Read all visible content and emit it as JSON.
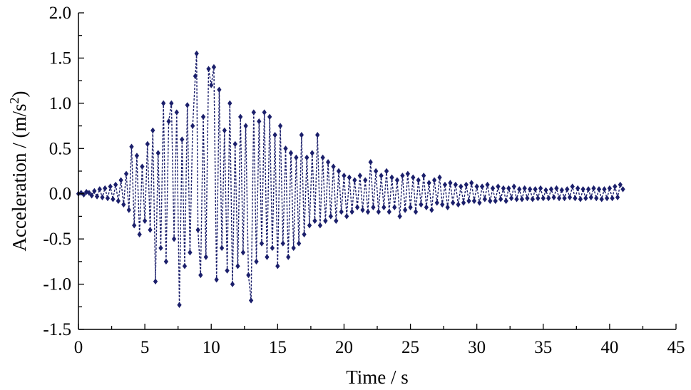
{
  "chart_data": {
    "type": "line",
    "xlabel": "Time / s",
    "ylabel": {
      "text": "Acceleration / (m/s",
      "superscript": "2",
      "suffix": ")"
    },
    "xlim": [
      0,
      45
    ],
    "ylim": [
      -1.5,
      2.0
    ],
    "x_ticks": [
      "0",
      "5",
      "10",
      "15",
      "20",
      "25",
      "30",
      "35",
      "40",
      "45"
    ],
    "y_ticks": [
      "-1.5",
      "-1.0",
      "-0.5",
      "0.0",
      "0.5",
      "1.0",
      "1.5",
      "2.0"
    ],
    "grid": false,
    "legend": "none",
    "line_style": "dashed",
    "marker": "diamond",
    "series": [
      {
        "color": "#1b1f6b",
        "points": [
          [
            0.0,
            0.0
          ],
          [
            0.2,
            0.01
          ],
          [
            0.4,
            -0.01
          ],
          [
            0.6,
            0.02
          ],
          [
            0.8,
            0.01
          ],
          [
            1.0,
            -0.02
          ],
          [
            1.2,
            0.03
          ],
          [
            1.4,
            -0.03
          ],
          [
            1.6,
            0.05
          ],
          [
            1.8,
            -0.04
          ],
          [
            2.0,
            0.06
          ],
          [
            2.2,
            -0.05
          ],
          [
            2.4,
            0.08
          ],
          [
            2.6,
            -0.06
          ],
          [
            2.8,
            0.1
          ],
          [
            3.0,
            -0.08
          ],
          [
            3.2,
            0.15
          ],
          [
            3.4,
            -0.12
          ],
          [
            3.6,
            0.22
          ],
          [
            3.8,
            -0.18
          ],
          [
            4.0,
            0.52
          ],
          [
            4.2,
            -0.35
          ],
          [
            4.4,
            0.42
          ],
          [
            4.6,
            -0.45
          ],
          [
            4.8,
            0.3
          ],
          [
            5.0,
            -0.3
          ],
          [
            5.2,
            0.55
          ],
          [
            5.4,
            -0.4
          ],
          [
            5.6,
            0.7
          ],
          [
            5.8,
            -0.97
          ],
          [
            6.0,
            0.45
          ],
          [
            6.2,
            -0.6
          ],
          [
            6.4,
            1.0
          ],
          [
            6.6,
            -0.75
          ],
          [
            6.8,
            0.8
          ],
          [
            7.0,
            1.0
          ],
          [
            7.2,
            -0.5
          ],
          [
            7.4,
            0.9
          ],
          [
            7.6,
            -1.23
          ],
          [
            7.8,
            0.6
          ],
          [
            8.0,
            -0.8
          ],
          [
            8.2,
            0.98
          ],
          [
            8.4,
            -0.65
          ],
          [
            8.6,
            0.75
          ],
          [
            8.8,
            1.3
          ],
          [
            8.9,
            1.55
          ],
          [
            9.0,
            -0.4
          ],
          [
            9.2,
            -0.9
          ],
          [
            9.4,
            0.85
          ],
          [
            9.6,
            -0.7
          ],
          [
            9.8,
            1.38
          ],
          [
            10.0,
            1.2
          ],
          [
            10.2,
            1.4
          ],
          [
            10.4,
            -0.95
          ],
          [
            10.6,
            1.15
          ],
          [
            10.8,
            -0.6
          ],
          [
            11.0,
            0.7
          ],
          [
            11.2,
            -0.85
          ],
          [
            11.4,
            1.0
          ],
          [
            11.6,
            -1.0
          ],
          [
            11.8,
            0.55
          ],
          [
            12.0,
            -0.8
          ],
          [
            12.2,
            0.85
          ],
          [
            12.4,
            -0.65
          ],
          [
            12.6,
            0.75
          ],
          [
            12.8,
            -0.9
          ],
          [
            13.0,
            -1.18
          ],
          [
            13.2,
            0.9
          ],
          [
            13.4,
            -0.75
          ],
          [
            13.6,
            0.8
          ],
          [
            13.8,
            -0.55
          ],
          [
            14.0,
            0.9
          ],
          [
            14.2,
            -0.7
          ],
          [
            14.4,
            0.85
          ],
          [
            14.6,
            -0.6
          ],
          [
            14.8,
            0.65
          ],
          [
            15.0,
            -0.8
          ],
          [
            15.2,
            0.75
          ],
          [
            15.4,
            -0.55
          ],
          [
            15.6,
            0.5
          ],
          [
            15.8,
            -0.7
          ],
          [
            16.0,
            0.45
          ],
          [
            16.2,
            -0.6
          ],
          [
            16.4,
            0.4
          ],
          [
            16.6,
            -0.55
          ],
          [
            16.8,
            0.65
          ],
          [
            17.0,
            -0.45
          ],
          [
            17.2,
            0.4
          ],
          [
            17.4,
            -0.35
          ],
          [
            17.6,
            0.45
          ],
          [
            17.8,
            -0.3
          ],
          [
            18.0,
            0.65
          ],
          [
            18.2,
            -0.35
          ],
          [
            18.4,
            0.4
          ],
          [
            18.6,
            -0.3
          ],
          [
            18.8,
            0.35
          ],
          [
            19.0,
            -0.25
          ],
          [
            19.2,
            0.3
          ],
          [
            19.4,
            -0.3
          ],
          [
            19.6,
            0.25
          ],
          [
            19.8,
            -0.2
          ],
          [
            20.0,
            0.2
          ],
          [
            20.2,
            -0.25
          ],
          [
            20.4,
            0.18
          ],
          [
            20.6,
            -0.2
          ],
          [
            20.8,
            0.15
          ],
          [
            21.0,
            -0.15
          ],
          [
            21.2,
            0.2
          ],
          [
            21.4,
            -0.18
          ],
          [
            21.6,
            0.15
          ],
          [
            21.8,
            -0.2
          ],
          [
            22.0,
            0.35
          ],
          [
            22.2,
            -0.15
          ],
          [
            22.4,
            0.25
          ],
          [
            22.6,
            -0.2
          ],
          [
            22.8,
            0.2
          ],
          [
            23.0,
            -0.15
          ],
          [
            23.2,
            0.25
          ],
          [
            23.4,
            -0.2
          ],
          [
            23.6,
            0.18
          ],
          [
            23.8,
            -0.15
          ],
          [
            24.0,
            0.15
          ],
          [
            24.2,
            -0.25
          ],
          [
            24.4,
            0.2
          ],
          [
            24.6,
            -0.18
          ],
          [
            24.8,
            0.22
          ],
          [
            25.0,
            -0.15
          ],
          [
            25.2,
            0.18
          ],
          [
            25.4,
            -0.2
          ],
          [
            25.6,
            0.15
          ],
          [
            25.8,
            -0.12
          ],
          [
            26.0,
            0.2
          ],
          [
            26.2,
            -0.15
          ],
          [
            26.4,
            0.12
          ],
          [
            26.6,
            -0.18
          ],
          [
            26.8,
            0.15
          ],
          [
            27.0,
            -0.1
          ],
          [
            27.2,
            0.18
          ],
          [
            27.4,
            -0.12
          ],
          [
            27.6,
            0.1
          ],
          [
            27.8,
            -0.15
          ],
          [
            28.0,
            0.12
          ],
          [
            28.2,
            -0.1
          ],
          [
            28.4,
            0.1
          ],
          [
            28.6,
            -0.12
          ],
          [
            28.8,
            0.08
          ],
          [
            29.0,
            -0.1
          ],
          [
            29.2,
            0.1
          ],
          [
            29.4,
            -0.08
          ],
          [
            29.6,
            0.12
          ],
          [
            29.8,
            -0.08
          ],
          [
            30.0,
            0.08
          ],
          [
            30.2,
            -0.1
          ],
          [
            30.4,
            0.08
          ],
          [
            30.6,
            -0.06
          ],
          [
            30.8,
            0.1
          ],
          [
            31.0,
            -0.08
          ],
          [
            31.2,
            0.06
          ],
          [
            31.4,
            -0.08
          ],
          [
            31.6,
            0.08
          ],
          [
            31.8,
            -0.06
          ],
          [
            32.0,
            0.06
          ],
          [
            32.2,
            -0.08
          ],
          [
            32.4,
            0.06
          ],
          [
            32.6,
            -0.05
          ],
          [
            32.8,
            0.08
          ],
          [
            33.0,
            -0.06
          ],
          [
            33.2,
            0.05
          ],
          [
            33.4,
            -0.06
          ],
          [
            33.6,
            0.06
          ],
          [
            33.8,
            -0.05
          ],
          [
            34.0,
            0.05
          ],
          [
            34.2,
            -0.06
          ],
          [
            34.4,
            0.05
          ],
          [
            34.6,
            -0.05
          ],
          [
            34.8,
            0.06
          ],
          [
            35.0,
            -0.05
          ],
          [
            35.2,
            0.04
          ],
          [
            35.4,
            -0.05
          ],
          [
            35.6,
            0.05
          ],
          [
            35.8,
            -0.04
          ],
          [
            36.0,
            0.06
          ],
          [
            36.2,
            -0.05
          ],
          [
            36.4,
            0.04
          ],
          [
            36.6,
            -0.05
          ],
          [
            36.8,
            0.05
          ],
          [
            37.0,
            -0.04
          ],
          [
            37.2,
            0.08
          ],
          [
            37.4,
            -0.05
          ],
          [
            37.6,
            0.06
          ],
          [
            37.8,
            -0.06
          ],
          [
            38.0,
            0.05
          ],
          [
            38.2,
            -0.05
          ],
          [
            38.4,
            0.05
          ],
          [
            38.6,
            -0.04
          ],
          [
            38.8,
            0.06
          ],
          [
            39.0,
            -0.05
          ],
          [
            39.2,
            0.05
          ],
          [
            39.4,
            -0.06
          ],
          [
            39.6,
            0.05
          ],
          [
            39.8,
            -0.05
          ],
          [
            40.0,
            0.06
          ],
          [
            40.2,
            -0.05
          ],
          [
            40.4,
            0.08
          ],
          [
            40.6,
            -0.04
          ],
          [
            40.8,
            0.1
          ],
          [
            41.0,
            0.05
          ]
        ]
      }
    ]
  }
}
